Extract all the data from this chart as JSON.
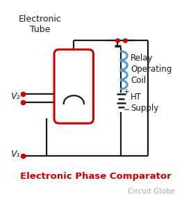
{
  "title": "Electronic Phase Comparator",
  "subtitle": "Circuit Globe",
  "label_tube": "Electronic\nTube",
  "label_v2": "V₂",
  "label_v1": "V₁",
  "label_relay": "Relay\nOperating\nCoil",
  "label_ht": "HT\nSupply",
  "bg_color": "#ffffff",
  "title_color": "#cc0000",
  "subtitle_color": "#aaaaaa",
  "line_color": "#1a1a1a",
  "tube_outline_color": "#cc0000",
  "coil_color": "#5599cc",
  "terminal_color": "#cc0000",
  "lw": 1.6
}
